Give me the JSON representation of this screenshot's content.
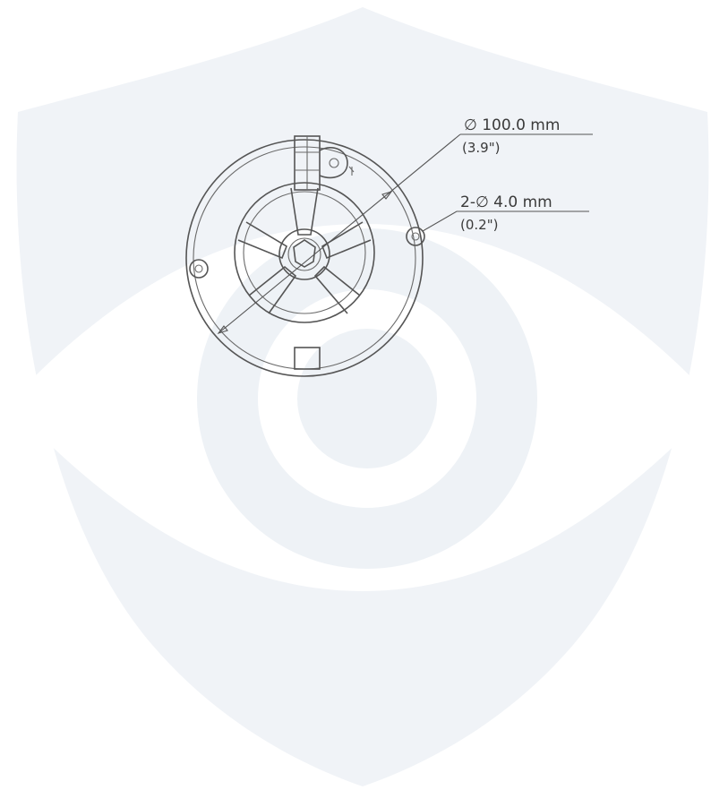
{
  "colors": {
    "background": "#ffffff",
    "watermark": "#eef1f6",
    "drawing_line": "#555555",
    "text": "#3a3a3a"
  },
  "watermark": {
    "name": "shield-eye-logo"
  },
  "annotations": {
    "diameter": {
      "primary": "∅ 100.0 mm",
      "secondary": "(3.9\")"
    },
    "holes": {
      "primary": "2-∅ 4.0 mm",
      "secondary": "(0.2\")"
    }
  }
}
